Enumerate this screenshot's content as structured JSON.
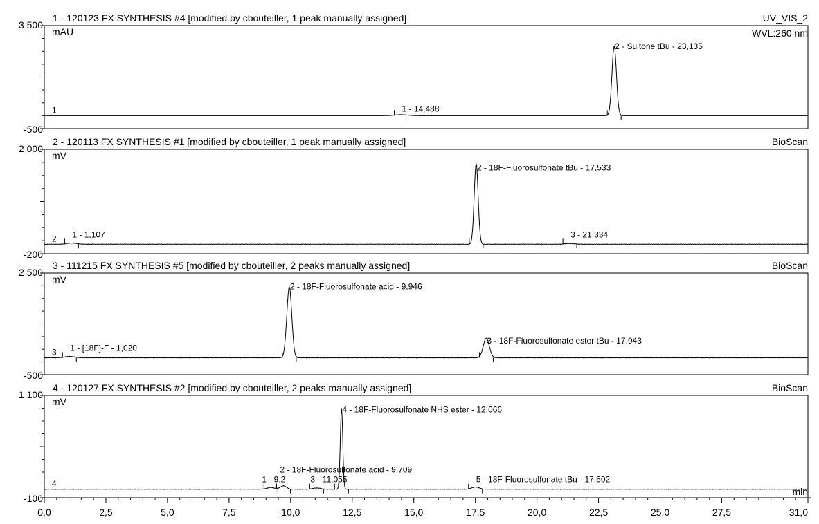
{
  "chart_data": [
    {
      "type": "line",
      "title": "1 - 120123 FX SYNTHESIS #4 [modified by cbouteiller, 1 peak manually assigned]",
      "channel": "UV_VIS_2",
      "wavelength": "WVL:260 nm",
      "unit": "mAU",
      "trace_label": "1",
      "ylim": [
        -500,
        3500
      ],
      "y_tick_labels": [
        "3 500",
        "-500"
      ],
      "baseline": 0,
      "peaks": [
        {
          "label": "1 - 14,488",
          "rt": 14.488,
          "height": 40,
          "width": 0.25
        },
        {
          "label": "2 - Sultone tBu - 23,135",
          "rt": 23.135,
          "height": 2700,
          "width": 0.09
        }
      ]
    },
    {
      "type": "line",
      "title": "2 - 120113 FX SYNTHESIS #1 [modified by cbouteiller, 1 peak manually assigned]",
      "channel": "BioScan",
      "unit": "mV",
      "trace_label": "2",
      "ylim": [
        -200,
        2000
      ],
      "y_tick_labels": [
        "2 000",
        "-200"
      ],
      "baseline": 0,
      "peaks": [
        {
          "label": "1 - 1,107",
          "rt": 1.107,
          "height": 25,
          "width": 0.2
        },
        {
          "label": "2 - 18F-Fluorosulfonate tBu - 17,533",
          "rt": 17.533,
          "height": 1700,
          "width": 0.08
        },
        {
          "label": "3 - 21,334",
          "rt": 21.334,
          "height": 15,
          "width": 0.2
        }
      ]
    },
    {
      "type": "line",
      "title": "3 - 111215 FX SYNTHESIS #5 [modified by cbouteiller, 2 peaks manually assigned]",
      "title_color": "#8a8a8a",
      "channel": "BioScan",
      "unit": "mV",
      "trace_label": "3",
      "ylim": [
        -500,
        2500
      ],
      "y_tick_labels": [
        "2 500",
        "-500"
      ],
      "baseline": 0,
      "peaks": [
        {
          "label": "1 - [18F]-F - 1,020",
          "rt": 1.02,
          "height": 40,
          "width": 0.2
        },
        {
          "label": "2 - 18F-Fluorosulfonate acid - 9,946",
          "rt": 9.946,
          "height": 2100,
          "width": 0.1
        },
        {
          "label": "3 - 18F-Fluorosulfonate ester tBu - 17,943",
          "rt": 17.943,
          "height": 580,
          "width": 0.12
        }
      ]
    },
    {
      "type": "line",
      "title": "4 - 120127 FX SYNTHESIS #2 [modified by cbouteiller, 2 peaks manually assigned]",
      "channel": "BioScan",
      "unit": "mV",
      "trace_label": "4",
      "ylim": [
        -100,
        1100
      ],
      "y_tick_labels": [
        "1 100",
        "-100"
      ],
      "baseline": 0,
      "peaks": [
        {
          "label": "1 - 9,2",
          "rt": 9.2,
          "height": 20,
          "width": 0.15
        },
        {
          "label": "2 - 18F-Fluorosulfonate acid - 9,709",
          "rt": 9.709,
          "height": 40,
          "width": 0.12
        },
        {
          "label": "3 - 11,055",
          "rt": 11.055,
          "height": 15,
          "width": 0.15
        },
        {
          "label": "4 - 18F-Fluorosulfonate NHS ester - 12,066",
          "rt": 12.066,
          "height": 950,
          "width": 0.05
        },
        {
          "label": "5 - 18F-Fluorosulfonate tBu - 17,502",
          "rt": 17.502,
          "height": 25,
          "width": 0.15
        }
      ]
    }
  ],
  "x_axis": {
    "unit": "min",
    "xlim": [
      0,
      31
    ],
    "ticks": [
      "0,0",
      "2,5",
      "5,0",
      "7,5",
      "10,0",
      "12,5",
      "15,0",
      "17,5",
      "20,0",
      "22,5",
      "25,0",
      "27,5",
      "31,0"
    ],
    "tick_values": [
      0,
      2.5,
      5,
      7.5,
      10,
      12.5,
      15,
      17.5,
      20,
      22.5,
      25,
      27.5,
      31
    ]
  }
}
